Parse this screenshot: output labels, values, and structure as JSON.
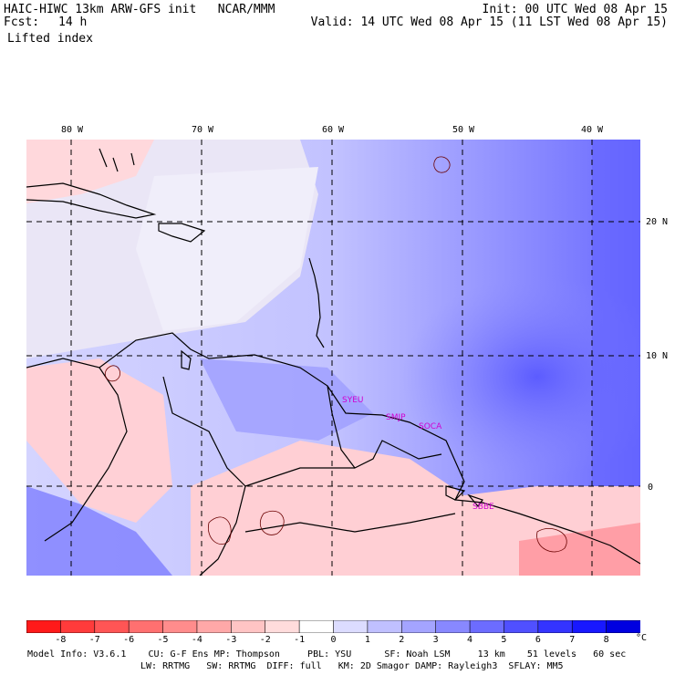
{
  "header": {
    "title_left": "HAIC-HIWC 13km ARW-GFS init   NCAR/MMM",
    "fcst_label": "Fcst:",
    "fcst_value": "14 h",
    "field": "Lifted index",
    "init": "Init: 00 UTC Wed 08 Apr 15",
    "valid": "Valid: 14 UTC Wed 08 Apr 15 (11 LST Wed 08 Apr 15)"
  },
  "map": {
    "lon_labels": [
      "80 W",
      "70 W",
      "60 W",
      "50 W",
      "40 W"
    ],
    "lat_labels": [
      "20 N",
      "10 N",
      "0"
    ],
    "stations": [
      "SYEU",
      "SMJP",
      "SOCA",
      "SBBE"
    ]
  },
  "colorbar": {
    "ticks": [
      "-8",
      "-7",
      "-6",
      "-5",
      "-4",
      "-3",
      "-2",
      "-1",
      "0",
      "1",
      "2",
      "3",
      "4",
      "5",
      "6",
      "7",
      "8"
    ],
    "unit": "°C",
    "colors": [
      "#ff1a1a",
      "#ff3b3b",
      "#ff5555",
      "#ff7070",
      "#ff8c8c",
      "#ffa8a8",
      "#ffc4c4",
      "#ffdcdc",
      "#ffffff",
      "#dcdcff",
      "#c0c0ff",
      "#a4a4ff",
      "#8888ff",
      "#6c6cff",
      "#5050ff",
      "#3434ff",
      "#1818ff",
      "#0000e0"
    ]
  },
  "footer": {
    "line1": "Model Info: V3.6.1    CU: G-F Ens MP: Thompson     PBL: YSU      SF: Noah LSM     13 km    51 levels   60 sec",
    "line2": "LW: RRTMG   SW: RRTMG  DIFF: full   KM: 2D Smagor DAMP: Rayleigh3  SFLAY: MM5"
  }
}
